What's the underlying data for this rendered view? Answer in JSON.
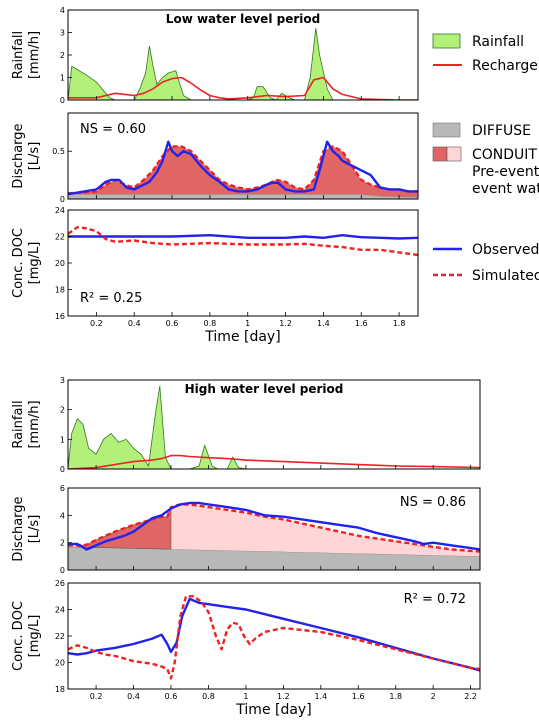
{
  "legend": {
    "rainfall": "Rainfall",
    "recharge": "Recharge",
    "diffuse": "DIFFUSE",
    "conduit": "CONDUIT",
    "pre_event": "Pre-event",
    "event_water": "event water",
    "observed": "Observed",
    "simulated": "Simulated"
  },
  "colors": {
    "rain_fill": "#b3f07a",
    "rain_line": "#2f7a1f",
    "recharge": "#ee2222",
    "observed": "#2222ee",
    "simulated": "#ee2222",
    "diffuse": "#b8b8b8",
    "conduit_event": "#e06666",
    "conduit_pre": "#ffd5d5"
  },
  "chart_data": [
    {
      "type": "area",
      "panel": "low-rainfall",
      "title": "Low water level period",
      "xlabel": "",
      "ylabel": "Rainfall [mm/h]",
      "xlim": [
        0.05,
        1.9
      ],
      "ylim": [
        0,
        4
      ],
      "yticks": [
        "0",
        "1",
        "2",
        "3",
        "4"
      ],
      "series": [
        {
          "name": "Rainfall",
          "kind": "area",
          "x": [
            0.05,
            0.07,
            0.1,
            0.15,
            0.2,
            0.24,
            0.27,
            0.3,
            0.35,
            0.4,
            0.43,
            0.46,
            0.48,
            0.5,
            0.52,
            0.55,
            0.58,
            0.62,
            0.66,
            0.7,
            0.75,
            0.82,
            0.88,
            0.95,
            1.0,
            1.03,
            1.05,
            1.08,
            1.12,
            1.15,
            1.18,
            1.22,
            1.25,
            1.3,
            1.33,
            1.36,
            1.38,
            1.42,
            1.45,
            1.5,
            1.9
          ],
          "y": [
            0,
            1.5,
            1.35,
            1.1,
            0.8,
            0.4,
            0.1,
            0,
            0,
            0,
            0.5,
            1.2,
            2.4,
            1.5,
            0.7,
            1.0,
            1.2,
            1.3,
            0.2,
            0,
            0,
            0,
            0,
            0,
            0,
            0.1,
            0.6,
            0.6,
            0.1,
            0,
            0.3,
            0.1,
            0,
            0,
            1.0,
            3.2,
            2.0,
            0.5,
            0,
            0,
            0
          ]
        },
        {
          "name": "Recharge",
          "kind": "line",
          "x": [
            0.05,
            0.2,
            0.25,
            0.3,
            0.35,
            0.4,
            0.45,
            0.5,
            0.55,
            0.6,
            0.65,
            0.7,
            0.75,
            0.8,
            0.85,
            0.9,
            1.0,
            1.1,
            1.2,
            1.3,
            1.35,
            1.4,
            1.45,
            1.5,
            1.6,
            1.7,
            1.8,
            1.9
          ],
          "y": [
            0.1,
            0.1,
            0.2,
            0.3,
            0.25,
            0.2,
            0.3,
            0.5,
            0.8,
            0.95,
            1.0,
            0.75,
            0.45,
            0.2,
            0.1,
            0.05,
            0.1,
            0.2,
            0.15,
            0.2,
            0.9,
            1.0,
            0.5,
            0.25,
            0.05,
            0.02,
            0,
            0
          ]
        }
      ]
    },
    {
      "type": "area",
      "panel": "low-discharge",
      "annotation": "NS = 0.60",
      "xlabel": "",
      "ylabel": "Discharge [L/s]",
      "xlim": [
        0.05,
        1.9
      ],
      "ylim": [
        0,
        0.9
      ],
      "yticks": [
        "0",
        "0.5"
      ],
      "series": [
        {
          "name": "DIFFUSE",
          "kind": "area",
          "x": [
            0.05,
            1.5,
            1.6,
            1.7,
            1.9
          ],
          "y": [
            0.05,
            0.05,
            0.05,
            0.03,
            0.02
          ]
        },
        {
          "name": "Simulated",
          "kind": "area-conduit",
          "x": [
            0.05,
            0.2,
            0.25,
            0.3,
            0.35,
            0.4,
            0.45,
            0.5,
            0.55,
            0.6,
            0.65,
            0.7,
            0.75,
            0.8,
            0.85,
            0.9,
            0.95,
            1.0,
            1.05,
            1.1,
            1.15,
            1.2,
            1.25,
            1.3,
            1.35,
            1.4,
            1.45,
            1.5,
            1.55,
            1.6,
            1.65,
            1.7,
            1.75,
            1.8,
            1.85,
            1.9
          ],
          "y": [
            0.06,
            0.08,
            0.15,
            0.2,
            0.15,
            0.12,
            0.2,
            0.3,
            0.45,
            0.55,
            0.55,
            0.5,
            0.4,
            0.3,
            0.2,
            0.15,
            0.12,
            0.1,
            0.12,
            0.15,
            0.2,
            0.18,
            0.12,
            0.1,
            0.2,
            0.5,
            0.55,
            0.5,
            0.35,
            0.2,
            0.15,
            0.12,
            0.1,
            0.1,
            0.08,
            0.08
          ]
        },
        {
          "name": "Observed",
          "kind": "line",
          "x": [
            0.05,
            0.2,
            0.25,
            0.28,
            0.32,
            0.36,
            0.4,
            0.45,
            0.48,
            0.52,
            0.55,
            0.58,
            0.6,
            0.63,
            0.66,
            0.7,
            0.75,
            0.8,
            0.85,
            0.9,
            0.95,
            1.0,
            1.05,
            1.1,
            1.13,
            1.16,
            1.2,
            1.25,
            1.3,
            1.35,
            1.38,
            1.42,
            1.45,
            1.48,
            1.5,
            1.55,
            1.6,
            1.65,
            1.7,
            1.75,
            1.8,
            1.85,
            1.9
          ],
          "y": [
            0.05,
            0.1,
            0.18,
            0.2,
            0.2,
            0.12,
            0.1,
            0.15,
            0.18,
            0.28,
            0.4,
            0.6,
            0.5,
            0.45,
            0.5,
            0.47,
            0.35,
            0.25,
            0.18,
            0.1,
            0.08,
            0.08,
            0.1,
            0.15,
            0.17,
            0.17,
            0.1,
            0.08,
            0.08,
            0.1,
            0.3,
            0.6,
            0.5,
            0.45,
            0.4,
            0.35,
            0.3,
            0.25,
            0.12,
            0.1,
            0.1,
            0.08,
            0.08
          ]
        }
      ]
    },
    {
      "type": "line",
      "panel": "low-doc",
      "annotation": "R² = 0.25",
      "xlabel": "Time [day]",
      "ylabel": "Conc. DOC [mg/L]",
      "xlim": [
        0.05,
        1.9
      ],
      "ylim": [
        16,
        24
      ],
      "xticks": [
        "0.2",
        "0.4",
        "0.6",
        "0.8",
        "1",
        "1.2",
        "1.4",
        "1.6",
        "1.8"
      ],
      "yticks": [
        "16",
        "18",
        "20",
        "22",
        "24"
      ],
      "series": [
        {
          "name": "Observed",
          "kind": "line",
          "x": [
            0.05,
            0.2,
            0.4,
            0.6,
            0.8,
            1.0,
            1.2,
            1.3,
            1.4,
            1.5,
            1.6,
            1.7,
            1.8,
            1.9
          ],
          "y": [
            22.0,
            22.0,
            22.0,
            22.0,
            22.1,
            21.9,
            21.9,
            22.0,
            21.9,
            22.1,
            21.95,
            21.9,
            21.85,
            21.9
          ]
        },
        {
          "name": "Simulated",
          "kind": "dashed",
          "x": [
            0.05,
            0.1,
            0.15,
            0.2,
            0.25,
            0.3,
            0.4,
            0.5,
            0.6,
            0.8,
            1.0,
            1.2,
            1.3,
            1.4,
            1.5,
            1.6,
            1.7,
            1.8,
            1.9
          ],
          "y": [
            22.2,
            22.7,
            22.6,
            22.4,
            21.8,
            21.6,
            21.7,
            21.5,
            21.4,
            21.5,
            21.4,
            21.4,
            21.45,
            21.3,
            21.2,
            21.0,
            21.0,
            20.8,
            20.6
          ]
        }
      ]
    },
    {
      "type": "area",
      "panel": "high-rainfall",
      "title": "High water level period",
      "xlabel": "",
      "ylabel": "Rainfall [mm/h]",
      "xlim": [
        0.05,
        2.25
      ],
      "ylim": [
        0,
        3
      ],
      "yticks": [
        "0",
        "1",
        "2",
        "3"
      ],
      "series": [
        {
          "name": "Rainfall",
          "kind": "area",
          "x": [
            0.05,
            0.07,
            0.1,
            0.13,
            0.16,
            0.2,
            0.24,
            0.28,
            0.32,
            0.36,
            0.4,
            0.44,
            0.48,
            0.52,
            0.54,
            0.57,
            0.6,
            0.65,
            0.7,
            0.75,
            0.78,
            0.82,
            0.85,
            0.9,
            0.93,
            0.96,
            1.0,
            2.25
          ],
          "y": [
            0,
            1.2,
            1.7,
            1.5,
            0.7,
            0.5,
            1.0,
            1.2,
            0.9,
            1.0,
            0.7,
            0.5,
            0.1,
            2.0,
            2.8,
            0.4,
            0,
            0,
            0,
            0.1,
            0.8,
            0.1,
            0,
            0,
            0.4,
            0.05,
            0,
            0
          ]
        },
        {
          "name": "Recharge",
          "kind": "line",
          "x": [
            0.05,
            0.2,
            0.3,
            0.4,
            0.5,
            0.55,
            0.6,
            0.65,
            0.7,
            0.8,
            0.9,
            1.0,
            1.2,
            1.4,
            1.6,
            1.8,
            2.0,
            2.25
          ],
          "y": [
            0.0,
            0.05,
            0.15,
            0.25,
            0.3,
            0.35,
            0.45,
            0.45,
            0.42,
            0.38,
            0.35,
            0.3,
            0.25,
            0.2,
            0.15,
            0.1,
            0.08,
            0.05
          ]
        }
      ]
    },
    {
      "type": "area",
      "panel": "high-discharge",
      "annotation": "NS = 0.86",
      "xlabel": "",
      "ylabel": "Discharge [L/s]",
      "xlim": [
        0.05,
        2.25
      ],
      "ylim": [
        0,
        6
      ],
      "yticks": [
        "0",
        "2",
        "4",
        "6"
      ],
      "series": [
        {
          "name": "DIFFUSE",
          "kind": "area",
          "x": [
            0.05,
            2.25
          ],
          "y": [
            1.7,
            1.0
          ]
        },
        {
          "name": "Simulated",
          "kind": "area-conduit",
          "x": [
            0.05,
            0.1,
            0.15,
            0.2,
            0.3,
            0.4,
            0.5,
            0.55,
            0.58,
            0.6,
            0.65,
            0.7,
            0.8,
            0.9,
            1.0,
            1.1,
            1.2,
            1.3,
            1.4,
            1.5,
            1.6,
            1.7,
            1.8,
            1.9,
            2.0,
            2.1,
            2.2,
            2.25
          ],
          "y": [
            1.8,
            1.8,
            1.85,
            2.2,
            2.8,
            3.3,
            3.7,
            3.9,
            3.9,
            4.6,
            4.8,
            4.8,
            4.6,
            4.4,
            4.2,
            3.9,
            3.7,
            3.4,
            3.1,
            2.8,
            2.5,
            2.3,
            2.1,
            1.9,
            1.7,
            1.5,
            1.4,
            1.35
          ]
        },
        {
          "name": "Observed",
          "kind": "line",
          "x": [
            0.05,
            0.1,
            0.15,
            0.2,
            0.25,
            0.3,
            0.35,
            0.4,
            0.45,
            0.5,
            0.55,
            0.6,
            0.65,
            0.7,
            0.75,
            0.8,
            0.9,
            1.0,
            1.1,
            1.2,
            1.3,
            1.4,
            1.5,
            1.6,
            1.7,
            1.8,
            1.9,
            1.95,
            2.0,
            2.1,
            2.2,
            2.25
          ],
          "y": [
            1.9,
            1.9,
            1.5,
            1.8,
            2.1,
            2.3,
            2.5,
            2.8,
            3.3,
            3.8,
            4.0,
            4.5,
            4.8,
            4.9,
            4.9,
            4.8,
            4.6,
            4.4,
            4.0,
            3.9,
            3.7,
            3.5,
            3.3,
            3.1,
            2.7,
            2.4,
            2.1,
            1.9,
            2.0,
            1.8,
            1.6,
            1.5
          ]
        }
      ]
    },
    {
      "type": "line",
      "panel": "high-doc",
      "annotation": "R² = 0.72",
      "xlabel": "Time [day]",
      "ylabel": "Conc. DOC [mg/L]",
      "xlim": [
        0.05,
        2.25
      ],
      "ylim": [
        18,
        26
      ],
      "xticks": [
        "0.2",
        "0.4",
        "0.6",
        "0.8",
        "1",
        "1.2",
        "1.4",
        "1.6",
        "1.8",
        "2",
        "2.2"
      ],
      "yticks": [
        "18",
        "20",
        "22",
        "24",
        "26"
      ],
      "series": [
        {
          "name": "Observed",
          "kind": "line",
          "x": [
            0.05,
            0.1,
            0.15,
            0.2,
            0.3,
            0.4,
            0.5,
            0.55,
            0.58,
            0.6,
            0.63,
            0.66,
            0.7,
            0.75,
            0.8,
            0.9,
            1.0,
            1.2,
            1.4,
            1.6,
            1.8,
            2.0,
            2.2,
            2.25
          ],
          "y": [
            20.7,
            20.6,
            20.7,
            20.9,
            21.1,
            21.4,
            21.8,
            22.1,
            21.4,
            20.8,
            21.5,
            23.5,
            24.8,
            24.5,
            24.4,
            24.2,
            24.0,
            23.3,
            22.6,
            21.9,
            21.1,
            20.3,
            19.6,
            19.4
          ]
        },
        {
          "name": "Simulated",
          "kind": "dashed",
          "x": [
            0.05,
            0.1,
            0.15,
            0.2,
            0.25,
            0.3,
            0.35,
            0.4,
            0.45,
            0.5,
            0.55,
            0.58,
            0.6,
            0.62,
            0.65,
            0.68,
            0.72,
            0.76,
            0.8,
            0.84,
            0.87,
            0.9,
            0.93,
            0.96,
            0.99,
            1.02,
            1.05,
            1.1,
            1.2,
            1.4,
            1.6,
            1.8,
            2.0,
            2.2,
            2.25
          ],
          "y": [
            21.0,
            21.3,
            21.1,
            20.8,
            20.6,
            20.5,
            20.3,
            20.1,
            20.0,
            19.9,
            19.7,
            19.5,
            18.8,
            20.0,
            23.5,
            25.0,
            25.0,
            24.6,
            23.8,
            22.0,
            21.0,
            22.5,
            23.0,
            22.9,
            22.0,
            21.4,
            21.8,
            22.3,
            22.6,
            22.3,
            21.7,
            21.0,
            20.3,
            19.6,
            19.5
          ]
        }
      ]
    }
  ]
}
